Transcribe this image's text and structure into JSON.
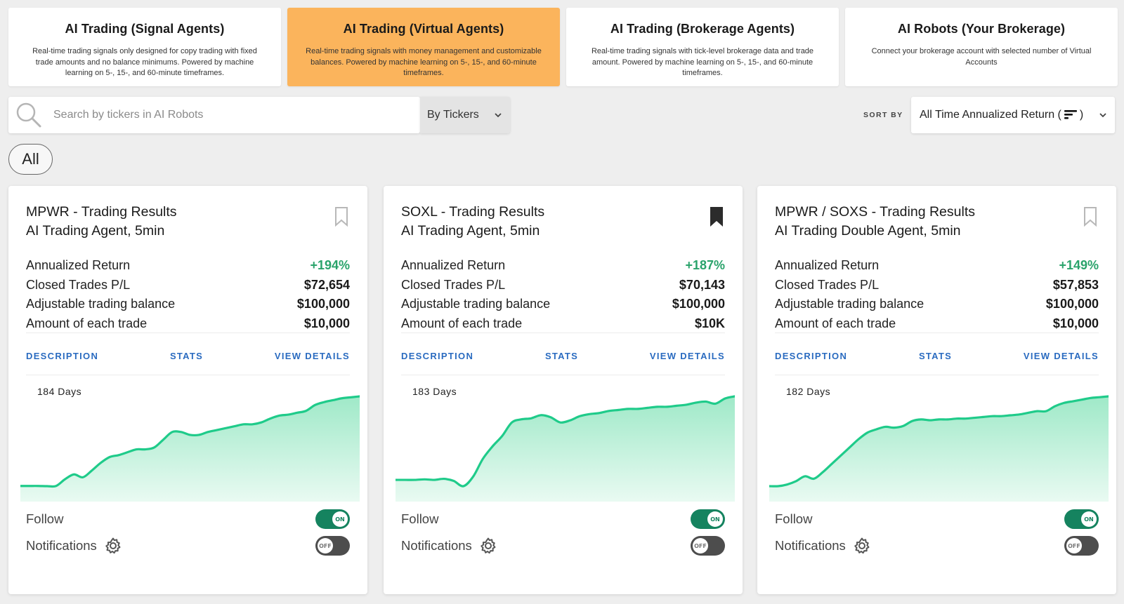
{
  "categories": [
    {
      "title": "AI Trading (Signal Agents)",
      "description": "Real-time trading signals only designed for copy trading with fixed trade amounts and no balance minimums. Powered by machine learning on 5-, 15-, and 60-minute timeframes.",
      "active": false
    },
    {
      "title": "AI Trading (Virtual Agents)",
      "description": "Real-time trading signals with money management and customizable balances. Powered by machine learning on 5-, 15-, and 60-minute timeframes.",
      "active": true
    },
    {
      "title": "AI Trading (Brokerage Agents)",
      "description": "Real-time trading signals with tick-level brokerage data and trade amount. Powered by machine learning on 5-, 15-, and 60-minute timeframes.",
      "active": false
    },
    {
      "title": "AI Robots (Your Brokerage)",
      "description": "Connect your brokerage account with selected number of Virtual Accounts",
      "active": false
    }
  ],
  "search": {
    "placeholder": "Search by tickers in AI Robots",
    "value": "",
    "mode": "By Tickers"
  },
  "sort": {
    "label": "SORT BY",
    "value_prefix": "All Time Annualized Return (",
    "value_suffix": ")"
  },
  "filter_chip": "All",
  "colors": {
    "active_tab": "#fbb45c",
    "positive": "#2aa36b",
    "link": "#2a6bc0",
    "toggle_on": "#15835f",
    "chart_line": "#1fcb8a"
  },
  "cards": [
    {
      "title": "MPWR - Trading Results",
      "subtitle": "AI Trading Agent, 5min",
      "bookmarked": false,
      "metrics": [
        {
          "label": "Annualized Return",
          "value": "+194%"
        },
        {
          "label": "Closed Trades P/L",
          "value": "$72,654"
        },
        {
          "label": "Adjustable trading balance",
          "value": "$100,000"
        },
        {
          "label": "Amount of each trade",
          "value": "$10,000"
        }
      ],
      "links": {
        "description": "DESCRIPTION",
        "stats": "STATS",
        "details": "VIEW DETAILS"
      },
      "days": "184 Days",
      "follow": {
        "label": "Follow",
        "state": "ON"
      },
      "notifications": {
        "label": "Notifications",
        "state": "OFF"
      },
      "chart_data": {
        "type": "area",
        "values": [
          2,
          2,
          2,
          1.8,
          2,
          9,
          14,
          11,
          18,
          26,
          32,
          34,
          37,
          40,
          40,
          42,
          50,
          58,
          58,
          55,
          55,
          58,
          60,
          62,
          64,
          66,
          66,
          68,
          72,
          75,
          76,
          78,
          80,
          86,
          89,
          91,
          93,
          94,
          95
        ]
      }
    },
    {
      "title": "SOXL - Trading Results",
      "subtitle": "AI Trading Agent, 5min",
      "bookmarked": true,
      "metrics": [
        {
          "label": "Annualized Return",
          "value": "+187%"
        },
        {
          "label": "Closed Trades P/L",
          "value": "$70,143"
        },
        {
          "label": "Adjustable trading balance",
          "value": "$100,000"
        },
        {
          "label": "Amount of each trade",
          "value": "$10K"
        }
      ],
      "links": {
        "description": "DESCRIPTION",
        "stats": "STATS",
        "details": "VIEW DETAILS"
      },
      "days": "183 Days",
      "follow": {
        "label": "Follow",
        "state": "ON"
      },
      "notifications": {
        "label": "Notifications",
        "state": "OFF"
      },
      "chart_data": {
        "type": "area",
        "values": [
          20,
          20,
          20,
          20.5,
          20,
          21,
          19,
          14,
          23,
          40,
          52,
          62,
          75,
          78,
          79,
          82,
          80,
          75,
          77,
          81,
          83,
          84,
          86,
          87,
          88,
          88,
          89,
          90,
          90,
          91,
          92,
          94,
          95,
          93,
          98,
          100
        ]
      }
    },
    {
      "title": "MPWR / SOXS - Trading Results",
      "subtitle": "AI Trading Double Agent, 5min",
      "bookmarked": false,
      "metrics": [
        {
          "label": "Annualized Return",
          "value": "+149%"
        },
        {
          "label": "Closed Trades P/L",
          "value": "$57,853"
        },
        {
          "label": "Adjustable trading balance",
          "value": "$100,000"
        },
        {
          "label": "Amount of each trade",
          "value": "$10,000"
        }
      ],
      "links": {
        "description": "DESCRIPTION",
        "stats": "STATS",
        "details": "VIEW DETAILS"
      },
      "days": "182 Days",
      "follow": {
        "label": "Follow",
        "state": "ON"
      },
      "notifications": {
        "label": "Notifications",
        "state": "OFF"
      },
      "chart_data": {
        "type": "area",
        "values": [
          5,
          5,
          7,
          11,
          17,
          14,
          22,
          32,
          42,
          52,
          62,
          70,
          74,
          77,
          76,
          78,
          84,
          86,
          85,
          86,
          86,
          87,
          87,
          88,
          89,
          90,
          90,
          91,
          92,
          94,
          96,
          96,
          102,
          106,
          108,
          110,
          112,
          113,
          114
        ]
      }
    }
  ]
}
